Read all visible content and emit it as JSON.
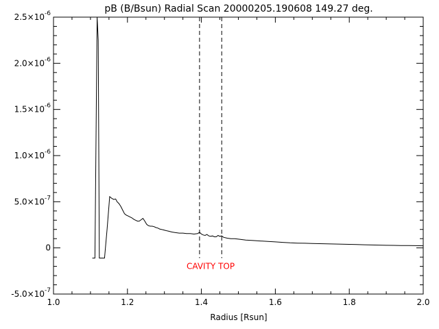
{
  "chart_data": {
    "type": "line",
    "title": "pB (B/Bsun) Radial Scan 20000205.190608 149.27 deg.",
    "xlabel": "Radius [Rsun]",
    "ylabel": "",
    "xlim": [
      1.0,
      2.0
    ],
    "ylim": [
      -5e-07,
      2.5e-06
    ],
    "grid": false,
    "x_ticks": [
      {
        "value": 1.0,
        "label": "1.0"
      },
      {
        "value": 1.2,
        "label": "1.2"
      },
      {
        "value": 1.4,
        "label": "1.4"
      },
      {
        "value": 1.6,
        "label": "1.6"
      },
      {
        "value": 1.8,
        "label": "1.8"
      },
      {
        "value": 2.0,
        "label": "2.0"
      }
    ],
    "y_ticks": [
      {
        "value": -5e-07,
        "mantissa": "-5.0×10",
        "exp": "-7"
      },
      {
        "value": 0,
        "mantissa": "0",
        "exp": ""
      },
      {
        "value": 5e-07,
        "mantissa": "5.0×10",
        "exp": "-7"
      },
      {
        "value": 1e-06,
        "mantissa": "1.0×10",
        "exp": "-6"
      },
      {
        "value": 1.5e-06,
        "mantissa": "1.5×10",
        "exp": "-6"
      },
      {
        "value": 2e-06,
        "mantissa": "2.0×10",
        "exp": "-6"
      },
      {
        "value": 2.5e-06,
        "mantissa": "2.5×10",
        "exp": "-6"
      }
    ],
    "series": [
      {
        "color": "#000000",
        "x": [
          1.105,
          1.112,
          1.118,
          1.121,
          1.124,
          1.131,
          1.138,
          1.145,
          1.152,
          1.158,
          1.163,
          1.168,
          1.172,
          1.177,
          1.182,
          1.187,
          1.192,
          1.197,
          1.202,
          1.207,
          1.212,
          1.217,
          1.222,
          1.227,
          1.232,
          1.237,
          1.242,
          1.247,
          1.252,
          1.257,
          1.262,
          1.267,
          1.272,
          1.277,
          1.282,
          1.287,
          1.292,
          1.297,
          1.302,
          1.307,
          1.312,
          1.32,
          1.33,
          1.34,
          1.35,
          1.36,
          1.37,
          1.38,
          1.39,
          1.395,
          1.4,
          1.405,
          1.41,
          1.415,
          1.42,
          1.425,
          1.43,
          1.435,
          1.44,
          1.445,
          1.45,
          1.455,
          1.46,
          1.47,
          1.48,
          1.49,
          1.5,
          1.52,
          1.54,
          1.56,
          1.58,
          1.6,
          1.62,
          1.64,
          1.66,
          1.68,
          1.7,
          1.72,
          1.74,
          1.76,
          1.78,
          1.8,
          1.82,
          1.84,
          1.86,
          1.88,
          1.9,
          1.92,
          1.94,
          1.96,
          1.98,
          2.0
        ],
        "y": [
          -1.1e-07,
          -1.1e-07,
          2.5e-06,
          2.25e-06,
          -1.1e-07,
          -1.1e-07,
          -1.1e-07,
          2.1e-07,
          5.55e-07,
          5.35e-07,
          5.25e-07,
          5.3e-07,
          5e-07,
          4.8e-07,
          4.5e-07,
          4.1e-07,
          3.7e-07,
          3.55e-07,
          3.45e-07,
          3.35e-07,
          3.25e-07,
          3.1e-07,
          3e-07,
          2.9e-07,
          2.9e-07,
          3.05e-07,
          3.2e-07,
          2.9e-07,
          2.55e-07,
          2.4e-07,
          2.35e-07,
          2.35e-07,
          2.3e-07,
          2.2e-07,
          2.15e-07,
          2.05e-07,
          2e-07,
          1.95e-07,
          1.9e-07,
          1.85e-07,
          1.8e-07,
          1.72e-07,
          1.65e-07,
          1.6e-07,
          1.6e-07,
          1.55e-07,
          1.55e-07,
          1.5e-07,
          1.55e-07,
          1.7e-07,
          1.5e-07,
          1.4e-07,
          1.35e-07,
          1.45e-07,
          1.3e-07,
          1.25e-07,
          1.3e-07,
          1.2e-07,
          1.2e-07,
          1.35e-07,
          1.25e-07,
          1.3e-07,
          1.15e-07,
          1.05e-07,
          1e-07,
          1e-07,
          9.5e-08,
          8.5e-08,
          8e-08,
          7.5e-08,
          7e-08,
          6.5e-08,
          6e-08,
          5.5e-08,
          5.2e-08,
          5e-08,
          4.8e-08,
          4.6e-08,
          4.4e-08,
          4.2e-08,
          4e-08,
          3.8e-08,
          3.6e-08,
          3.4e-08,
          3.2e-08,
          3e-08,
          2.8e-08,
          2.7e-08,
          2.6e-08,
          2.5e-08,
          2.4e-08,
          2.3e-08
        ]
      }
    ],
    "markers": [
      {
        "x": 1.395,
        "style": "dashed",
        "color": "#000000"
      },
      {
        "x": 1.455,
        "style": "dashed",
        "color": "#000000"
      }
    ],
    "annotations": [
      {
        "text": "CAVITY TOP",
        "x": 1.425,
        "y": -1.1e-07,
        "color": "#ff0000"
      }
    ]
  }
}
